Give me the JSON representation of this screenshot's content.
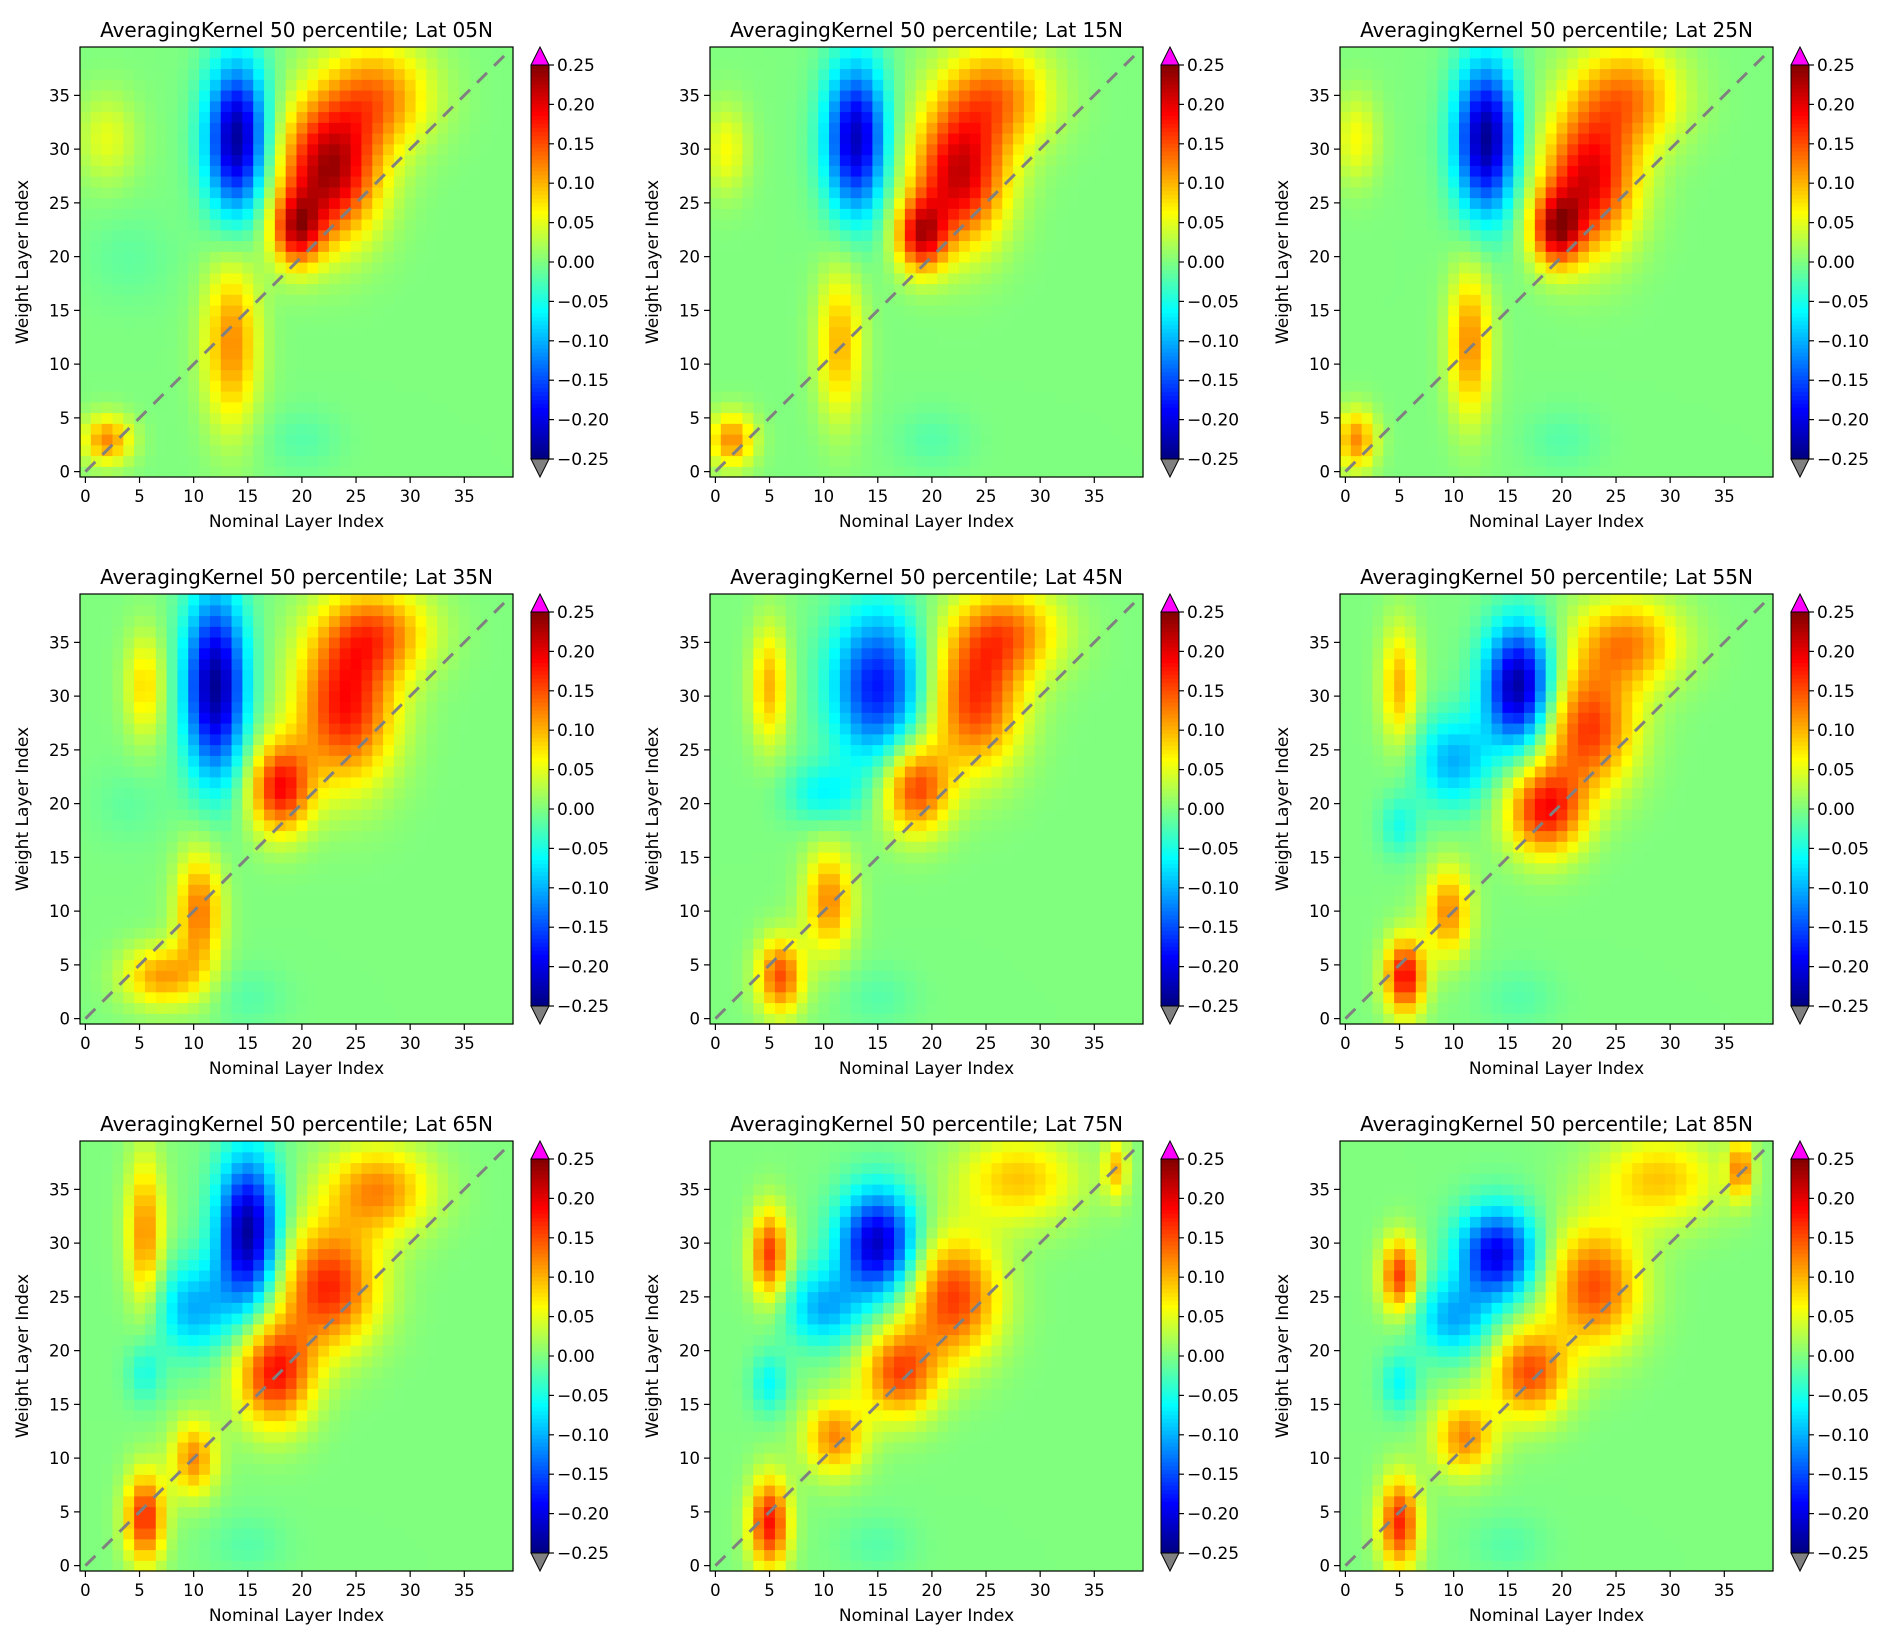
{
  "figure": {
    "rows": 3,
    "cols": 3
  },
  "colorbar": {
    "colormap": "jet",
    "vmin": -0.25,
    "vmax": 0.25,
    "ticks": [
      "0.25",
      "0.20",
      "0.15",
      "0.10",
      "0.05",
      "0.00",
      "−0.05",
      "−0.10",
      "−0.15",
      "−0.20",
      "−0.25"
    ],
    "extend_over_color": "#ff00ff",
    "extend_under_color": "#808080"
  },
  "chart_data": [
    {
      "type": "heatmap",
      "title": "AveragingKernel 50 percentile; Lat 05N",
      "xlabel": "Nominal Layer Index",
      "ylabel": "Weight Layer Index",
      "xlim": [
        -0.5,
        39.5
      ],
      "ylim": [
        -0.5,
        39.5
      ],
      "xticks": [
        "0",
        "5",
        "10",
        "15",
        "20",
        "25",
        "30",
        "35"
      ],
      "yticks": [
        "0",
        "5",
        "10",
        "15",
        "20",
        "25",
        "30",
        "35"
      ],
      "diagonal": {
        "style": "dashed",
        "color": "#808080"
      },
      "features": [
        {
          "x": 2,
          "y": 3,
          "sx": 1.6,
          "sy": 1.6,
          "amp": 0.12
        },
        {
          "x": 13.5,
          "y": 12,
          "sx": 1.8,
          "sy": 5.5,
          "amp": 0.12
        },
        {
          "x": 22.5,
          "y": 28,
          "sx": 3.2,
          "sy": 4.5,
          "amp": 0.23
        },
        {
          "x": 19.5,
          "y": 22.5,
          "sx": 1.6,
          "sy": 2.4,
          "amp": 0.17
        },
        {
          "x": 27,
          "y": 35,
          "sx": 3.5,
          "sy": 3.5,
          "amp": 0.12
        },
        {
          "x": 14,
          "y": 31,
          "sx": 2.0,
          "sy": 5.0,
          "amp": -0.24
        },
        {
          "x": 2,
          "y": 31,
          "sx": 2.0,
          "sy": 3.0,
          "amp": 0.05
        },
        {
          "x": 20,
          "y": 3,
          "sx": 2.5,
          "sy": 2.0,
          "amp": -0.02
        },
        {
          "x": 4,
          "y": 20,
          "sx": 3.0,
          "sy": 3.0,
          "amp": -0.015
        }
      ]
    },
    {
      "type": "heatmap",
      "title": "AveragingKernel 50 percentile; Lat 15N",
      "xlabel": "Nominal Layer Index",
      "ylabel": "Weight Layer Index",
      "xlim": [
        -0.5,
        39.5
      ],
      "ylim": [
        -0.5,
        39.5
      ],
      "xticks": [
        "0",
        "5",
        "10",
        "15",
        "20",
        "25",
        "30",
        "35"
      ],
      "yticks": [
        "0",
        "5",
        "10",
        "15",
        "20",
        "25",
        "30",
        "35"
      ],
      "diagonal": {
        "style": "dashed",
        "color": "#808080"
      },
      "features": [
        {
          "x": 1.5,
          "y": 3,
          "sx": 1.5,
          "sy": 1.8,
          "amp": 0.12
        },
        {
          "x": 11.5,
          "y": 12,
          "sx": 1.5,
          "sy": 5.0,
          "amp": 0.1
        },
        {
          "x": 22.5,
          "y": 27.5,
          "sx": 3.0,
          "sy": 4.5,
          "amp": 0.21
        },
        {
          "x": 19,
          "y": 22,
          "sx": 1.6,
          "sy": 2.4,
          "amp": 0.18
        },
        {
          "x": 26,
          "y": 35,
          "sx": 3.5,
          "sy": 3.5,
          "amp": 0.12
        },
        {
          "x": 13,
          "y": 31,
          "sx": 2.0,
          "sy": 5.0,
          "amp": -0.22
        },
        {
          "x": 1,
          "y": 30,
          "sx": 1.5,
          "sy": 3.0,
          "amp": 0.06
        },
        {
          "x": 20,
          "y": 3,
          "sx": 2.5,
          "sy": 2.0,
          "amp": -0.02
        }
      ]
    },
    {
      "type": "heatmap",
      "title": "AveragingKernel 50 percentile; Lat 25N",
      "xlabel": "Nominal Layer Index",
      "ylabel": "Weight Layer Index",
      "xlim": [
        -0.5,
        39.5
      ],
      "ylim": [
        -0.5,
        39.5
      ],
      "xticks": [
        "0",
        "5",
        "10",
        "15",
        "20",
        "25",
        "30",
        "35"
      ],
      "yticks": [
        "0",
        "5",
        "10",
        "15",
        "20",
        "25",
        "30",
        "35"
      ],
      "diagonal": {
        "style": "dashed",
        "color": "#808080"
      },
      "features": [
        {
          "x": 1,
          "y": 3,
          "sx": 1.3,
          "sy": 2.0,
          "amp": 0.12
        },
        {
          "x": 11.5,
          "y": 12,
          "sx": 1.4,
          "sy": 5.0,
          "amp": 0.12
        },
        {
          "x": 22.5,
          "y": 27,
          "sx": 3.0,
          "sy": 4.5,
          "amp": 0.2
        },
        {
          "x": 19.5,
          "y": 22.5,
          "sx": 1.6,
          "sy": 2.4,
          "amp": 0.18
        },
        {
          "x": 26,
          "y": 35,
          "sx": 3.5,
          "sy": 3.5,
          "amp": 0.12
        },
        {
          "x": 13,
          "y": 31,
          "sx": 2.0,
          "sy": 5.0,
          "amp": -0.24
        },
        {
          "x": 1,
          "y": 31,
          "sx": 1.5,
          "sy": 3.0,
          "amp": 0.06
        },
        {
          "x": 20,
          "y": 3,
          "sx": 2.5,
          "sy": 2.0,
          "amp": -0.02
        }
      ]
    },
    {
      "type": "heatmap",
      "title": "AveragingKernel 50 percentile; Lat 35N",
      "xlabel": "Nominal Layer Index",
      "ylabel": "Weight Layer Index",
      "xlim": [
        -0.5,
        39.5
      ],
      "ylim": [
        -0.5,
        39.5
      ],
      "xticks": [
        "0",
        "5",
        "10",
        "15",
        "20",
        "25",
        "30",
        "35"
      ],
      "yticks": [
        "0",
        "5",
        "10",
        "15",
        "20",
        "25",
        "30",
        "35"
      ],
      "diagonal": {
        "style": "dashed",
        "color": "#808080"
      },
      "features": [
        {
          "x": 7,
          "y": 4,
          "sx": 2.5,
          "sy": 2.0,
          "amp": 0.11
        },
        {
          "x": 10.5,
          "y": 10,
          "sx": 1.5,
          "sy": 4.0,
          "amp": 0.13
        },
        {
          "x": 18,
          "y": 21.5,
          "sx": 2.0,
          "sy": 3.0,
          "amp": 0.18
        },
        {
          "x": 24,
          "y": 29,
          "sx": 3.2,
          "sy": 5.0,
          "amp": 0.18
        },
        {
          "x": 27,
          "y": 36,
          "sx": 3.5,
          "sy": 3.0,
          "amp": 0.12
        },
        {
          "x": 12,
          "y": 31,
          "sx": 2.0,
          "sy": 6.0,
          "amp": -0.24
        },
        {
          "x": 5.5,
          "y": 31,
          "sx": 1.3,
          "sy": 3.5,
          "amp": 0.08
        },
        {
          "x": 15,
          "y": 2,
          "sx": 2.5,
          "sy": 2.0,
          "amp": -0.02
        },
        {
          "x": 4,
          "y": 20,
          "sx": 2.5,
          "sy": 2.5,
          "amp": -0.015
        }
      ]
    },
    {
      "type": "heatmap",
      "title": "AveragingKernel 50 percentile; Lat 45N",
      "xlabel": "Nominal Layer Index",
      "ylabel": "Weight Layer Index",
      "xlim": [
        -0.5,
        39.5
      ],
      "ylim": [
        -0.5,
        39.5
      ],
      "xticks": [
        "0",
        "5",
        "10",
        "15",
        "20",
        "25",
        "30",
        "35"
      ],
      "yticks": [
        "0",
        "5",
        "10",
        "15",
        "20",
        "25",
        "30",
        "35"
      ],
      "diagonal": {
        "style": "dashed",
        "color": "#808080"
      },
      "features": [
        {
          "x": 6,
          "y": 4,
          "sx": 1.5,
          "sy": 2.5,
          "amp": 0.15
        },
        {
          "x": 10.5,
          "y": 11,
          "sx": 1.6,
          "sy": 3.5,
          "amp": 0.12
        },
        {
          "x": 18.5,
          "y": 21.5,
          "sx": 2.2,
          "sy": 3.0,
          "amp": 0.16
        },
        {
          "x": 24,
          "y": 29.5,
          "sx": 3.0,
          "sy": 4.5,
          "amp": 0.16
        },
        {
          "x": 27,
          "y": 36,
          "sx": 3.5,
          "sy": 3.0,
          "amp": 0.12
        },
        {
          "x": 15,
          "y": 31,
          "sx": 3.0,
          "sy": 5.0,
          "amp": -0.18
        },
        {
          "x": 5,
          "y": 31,
          "sx": 1.2,
          "sy": 4.0,
          "amp": 0.1
        },
        {
          "x": 10,
          "y": 21,
          "sx": 2.5,
          "sy": 2.0,
          "amp": -0.06
        },
        {
          "x": 15,
          "y": 2,
          "sx": 2.5,
          "sy": 2.0,
          "amp": -0.02
        }
      ]
    },
    {
      "type": "heatmap",
      "title": "AveragingKernel 50 percentile; Lat 55N",
      "xlabel": "Nominal Layer Index",
      "ylabel": "Weight Layer Index",
      "xlim": [
        -0.5,
        39.5
      ],
      "ylim": [
        -0.5,
        39.5
      ],
      "xticks": [
        "0",
        "5",
        "10",
        "15",
        "20",
        "25",
        "30",
        "35"
      ],
      "yticks": [
        "0",
        "5",
        "10",
        "15",
        "20",
        "25",
        "30",
        "35"
      ],
      "diagonal": {
        "style": "dashed",
        "color": "#808080"
      },
      "features": [
        {
          "x": 5.5,
          "y": 4,
          "sx": 1.3,
          "sy": 2.5,
          "amp": 0.19
        },
        {
          "x": 9.5,
          "y": 10,
          "sx": 1.5,
          "sy": 3.0,
          "amp": 0.12
        },
        {
          "x": 18.5,
          "y": 19.5,
          "sx": 2.5,
          "sy": 3.0,
          "amp": 0.18
        },
        {
          "x": 22.5,
          "y": 27,
          "sx": 3.0,
          "sy": 4.0,
          "amp": 0.16
        },
        {
          "x": 26,
          "y": 35,
          "sx": 3.5,
          "sy": 3.0,
          "amp": 0.12
        },
        {
          "x": 16,
          "y": 31,
          "sx": 2.2,
          "sy": 4.0,
          "amp": -0.24
        },
        {
          "x": 5,
          "y": 31,
          "sx": 1.2,
          "sy": 4.0,
          "amp": 0.1
        },
        {
          "x": 10,
          "y": 24,
          "sx": 2.5,
          "sy": 3.0,
          "amp": -0.1
        },
        {
          "x": 5,
          "y": 18,
          "sx": 1.3,
          "sy": 2.0,
          "amp": -0.05
        },
        {
          "x": 16,
          "y": 2,
          "sx": 2.5,
          "sy": 2.0,
          "amp": -0.02
        }
      ]
    },
    {
      "type": "heatmap",
      "title": "AveragingKernel 50 percentile; Lat 65N",
      "xlabel": "Nominal Layer Index",
      "ylabel": "Weight Layer Index",
      "xlim": [
        -0.5,
        39.5
      ],
      "ylim": [
        -0.5,
        39.5
      ],
      "xticks": [
        "0",
        "5",
        "10",
        "15",
        "20",
        "25",
        "30",
        "35"
      ],
      "yticks": [
        "0",
        "5",
        "10",
        "15",
        "20",
        "25",
        "30",
        "35"
      ],
      "diagonal": {
        "style": "dashed",
        "color": "#808080"
      },
      "features": [
        {
          "x": 5.5,
          "y": 4.5,
          "sx": 1.3,
          "sy": 3.0,
          "amp": 0.17
        },
        {
          "x": 10,
          "y": 10,
          "sx": 1.5,
          "sy": 2.5,
          "amp": 0.12
        },
        {
          "x": 17.5,
          "y": 18,
          "sx": 2.5,
          "sy": 3.5,
          "amp": 0.18
        },
        {
          "x": 22.5,
          "y": 26,
          "sx": 3.2,
          "sy": 4.0,
          "amp": 0.17
        },
        {
          "x": 27,
          "y": 35,
          "sx": 3.5,
          "sy": 3.0,
          "amp": 0.12
        },
        {
          "x": 15,
          "y": 31,
          "sx": 2.0,
          "sy": 5.0,
          "amp": -0.24
        },
        {
          "x": 5.5,
          "y": 31,
          "sx": 1.2,
          "sy": 5.0,
          "amp": 0.12
        },
        {
          "x": 10,
          "y": 24,
          "sx": 2.5,
          "sy": 3.0,
          "amp": -0.1
        },
        {
          "x": 5.5,
          "y": 18,
          "sx": 1.2,
          "sy": 2.0,
          "amp": -0.05
        },
        {
          "x": 15,
          "y": 2,
          "sx": 2.5,
          "sy": 2.0,
          "amp": -0.02
        }
      ]
    },
    {
      "type": "heatmap",
      "title": "AveragingKernel 50 percentile; Lat 75N",
      "xlabel": "Nominal Layer Index",
      "ylabel": "Weight Layer Index",
      "xlim": [
        -0.5,
        39.5
      ],
      "ylim": [
        -0.5,
        39.5
      ],
      "xticks": [
        "0",
        "5",
        "10",
        "15",
        "20",
        "25",
        "30",
        "35"
      ],
      "yticks": [
        "0",
        "5",
        "10",
        "15",
        "20",
        "25",
        "30",
        "35"
      ],
      "diagonal": {
        "style": "dashed",
        "color": "#808080"
      },
      "features": [
        {
          "x": 5,
          "y": 4,
          "sx": 1.3,
          "sy": 3.0,
          "amp": 0.18
        },
        {
          "x": 11,
          "y": 12,
          "sx": 2.0,
          "sy": 2.5,
          "amp": 0.12
        },
        {
          "x": 17,
          "y": 18,
          "sx": 2.5,
          "sy": 3.0,
          "amp": 0.15
        },
        {
          "x": 22,
          "y": 25,
          "sx": 3.0,
          "sy": 4.0,
          "amp": 0.16
        },
        {
          "x": 28,
          "y": 36,
          "sx": 4.0,
          "sy": 3.0,
          "amp": 0.09
        },
        {
          "x": 37,
          "y": 37,
          "sx": 0.8,
          "sy": 2.0,
          "amp": 0.09
        },
        {
          "x": 15,
          "y": 30,
          "sx": 2.5,
          "sy": 3.5,
          "amp": -0.22
        },
        {
          "x": 5,
          "y": 29,
          "sx": 1.2,
          "sy": 3.0,
          "amp": 0.16
        },
        {
          "x": 10,
          "y": 24,
          "sx": 2.5,
          "sy": 2.5,
          "amp": -0.1
        },
        {
          "x": 5,
          "y": 17,
          "sx": 1.2,
          "sy": 2.0,
          "amp": -0.06
        },
        {
          "x": 15,
          "y": 2,
          "sx": 2.5,
          "sy": 2.0,
          "amp": -0.02
        }
      ]
    },
    {
      "type": "heatmap",
      "title": "AveragingKernel 50 percentile; Lat 85N",
      "xlabel": "Nominal Layer Index",
      "ylabel": "Weight Layer Index",
      "xlim": [
        -0.5,
        39.5
      ],
      "ylim": [
        -0.5,
        39.5
      ],
      "xticks": [
        "0",
        "5",
        "10",
        "15",
        "20",
        "25",
        "30",
        "35"
      ],
      "yticks": [
        "0",
        "5",
        "10",
        "15",
        "20",
        "25",
        "30",
        "35"
      ],
      "diagonal": {
        "style": "dashed",
        "color": "#808080"
      },
      "features": [
        {
          "x": 5,
          "y": 4,
          "sx": 1.3,
          "sy": 3.0,
          "amp": 0.17
        },
        {
          "x": 11,
          "y": 12,
          "sx": 2.0,
          "sy": 2.5,
          "amp": 0.12
        },
        {
          "x": 17,
          "y": 18,
          "sx": 2.5,
          "sy": 3.0,
          "amp": 0.15
        },
        {
          "x": 23,
          "y": 26,
          "sx": 3.0,
          "sy": 4.0,
          "amp": 0.15
        },
        {
          "x": 29,
          "y": 36,
          "sx": 4.0,
          "sy": 3.0,
          "amp": 0.09
        },
        {
          "x": 36.5,
          "y": 37,
          "sx": 0.8,
          "sy": 2.0,
          "amp": 0.12
        },
        {
          "x": 14,
          "y": 29,
          "sx": 2.5,
          "sy": 3.0,
          "amp": -0.2
        },
        {
          "x": 5,
          "y": 27,
          "sx": 1.2,
          "sy": 2.5,
          "amp": 0.16
        },
        {
          "x": 10,
          "y": 23,
          "sx": 2.5,
          "sy": 2.5,
          "amp": -0.1
        },
        {
          "x": 5,
          "y": 17,
          "sx": 1.2,
          "sy": 2.0,
          "amp": -0.06
        },
        {
          "x": 15,
          "y": 2,
          "sx": 2.5,
          "sy": 2.0,
          "amp": -0.02
        }
      ]
    }
  ]
}
